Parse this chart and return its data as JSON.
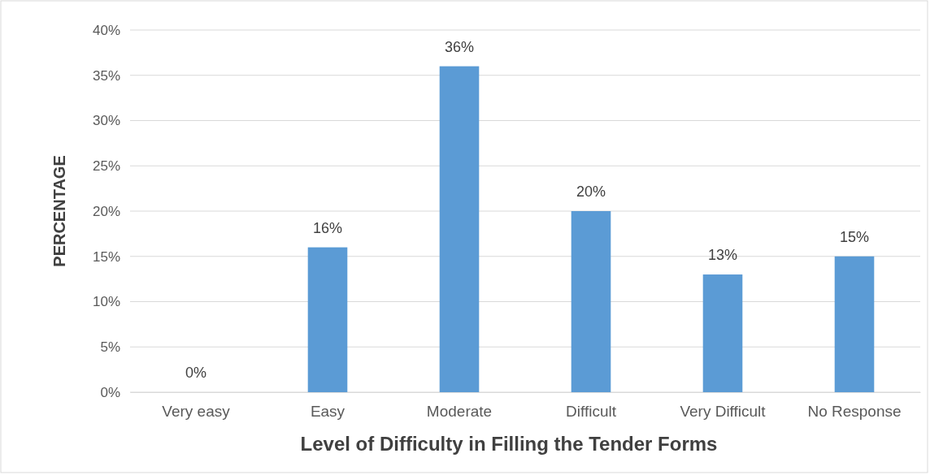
{
  "chart_data": {
    "type": "bar",
    "xlabel": "Level of Difficulty in Filling the Tender Forms",
    "ylabel": "PERCENTAGE",
    "categories": [
      "Very easy",
      "Easy",
      "Moderate",
      "Difficult",
      "Very Difficult",
      "No Response"
    ],
    "values": [
      0,
      16,
      36,
      20,
      13,
      15
    ],
    "value_labels": [
      "0%",
      "16%",
      "36%",
      "20%",
      "13%",
      "15%"
    ],
    "color": "#5b9bd5",
    "ylim": [
      0,
      40
    ],
    "yticks": [
      {
        "value": 0,
        "label": "0%"
      },
      {
        "value": 5,
        "label": "5%"
      },
      {
        "value": 10,
        "label": "10%"
      },
      {
        "value": 15,
        "label": "15%"
      },
      {
        "value": 20,
        "label": "20%"
      },
      {
        "value": 25,
        "label": "25%"
      },
      {
        "value": 30,
        "label": "30%"
      },
      {
        "value": 35,
        "label": "35%"
      },
      {
        "value": 40,
        "label": "40%"
      }
    ],
    "grid": "y"
  }
}
